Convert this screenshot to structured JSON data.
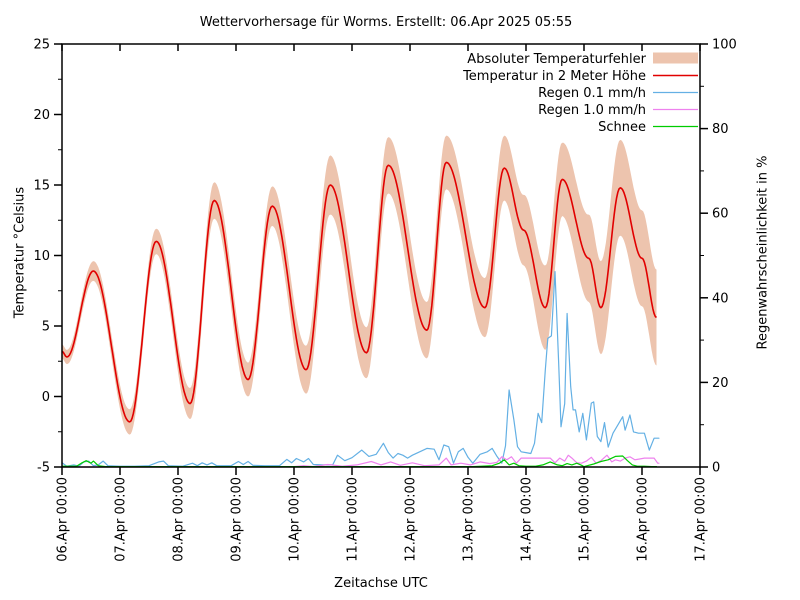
{
  "chart_data": {
    "type": "line",
    "title": "Wettervorhersage für Worms. Erstellt: 06.Apr 2025 05:55",
    "xlabel": "Zeitachse UTC",
    "ylabel_left": "Temperatur °Celsius",
    "ylabel_right": "Regenwahrscheinlichkeit in %",
    "y_left": {
      "min": -5,
      "max": 25,
      "ticks": [
        -5,
        0,
        5,
        10,
        15,
        20,
        25
      ],
      "unit": "°C"
    },
    "y_right": {
      "min": 0,
      "max": 100,
      "ticks": [
        0,
        20,
        40,
        60,
        80,
        100
      ],
      "unit": "%"
    },
    "x_axis": {
      "hours_total": 264,
      "tick_step_hours": 24,
      "tick_labels": [
        "06.Apr 00:00",
        "07.Apr 00:00",
        "08.Apr 00:00",
        "09.Apr 00:00",
        "10.Apr 00:00",
        "11.Apr 00:00",
        "12.Apr 00:00",
        "13.Apr 00:00",
        "14.Apr 00:00",
        "15.Apr 00:00",
        "16.Apr 00:00",
        "17.Apr 00:00"
      ]
    },
    "legend": [
      {
        "label": "Absoluter Temperaturfehler",
        "swatch": "band",
        "color": "#edc4ae"
      },
      {
        "label": "Temperatur in 2 Meter Höhe",
        "swatch": "line",
        "color": "#e10000"
      },
      {
        "label": "Regen 0.1 mm/h",
        "swatch": "line",
        "color": "#64b0e4"
      },
      {
        "label": "Regen 1.0 mm/h",
        "swatch": "line",
        "color": "#ee82ee"
      },
      {
        "label": "Schnee",
        "swatch": "line",
        "color": "#00cc00"
      }
    ],
    "colors": {
      "band": "#edc4ae",
      "temperature": "#e10000",
      "rain01": "#64b0e4",
      "rain10": "#ee82ee",
      "snow": "#00cc00",
      "axis": "#000000",
      "background": "#ffffff"
    },
    "temperature_c": {
      "axis": "left",
      "note": "keypoints [hours since 06.Apr 00:00 UTC, temp °C, abs error ±°C]; smooth daily wave",
      "keypoints": [
        [
          0,
          3.2,
          0.5
        ],
        [
          2,
          2.8,
          0.5
        ],
        [
          13,
          8.9,
          0.7
        ],
        [
          28,
          -1.8,
          0.9
        ],
        [
          39,
          11.0,
          0.9
        ],
        [
          53,
          -0.5,
          1.1
        ],
        [
          63,
          13.9,
          1.3
        ],
        [
          77,
          1.2,
          1.2
        ],
        [
          87,
          13.5,
          1.4
        ],
        [
          101,
          1.9,
          1.7
        ],
        [
          111,
          15.0,
          2.1
        ],
        [
          126,
          3.1,
          1.8
        ],
        [
          135,
          16.4,
          2.0
        ],
        [
          151,
          4.7,
          2.0
        ],
        [
          159,
          16.6,
          1.9
        ],
        [
          175,
          6.3,
          2.1
        ],
        [
          183,
          16.2,
          2.3
        ],
        [
          191,
          11.8,
          2.5
        ],
        [
          200,
          6.3,
          3.0
        ],
        [
          207,
          15.4,
          2.6
        ],
        [
          218,
          9.8,
          3.1
        ],
        [
          223,
          6.3,
          3.3
        ],
        [
          231,
          14.8,
          3.4
        ],
        [
          240,
          9.8,
          3.4
        ],
        [
          246,
          5.6,
          3.4
        ]
      ]
    },
    "rain01_pct": {
      "axis": "right",
      "points": [
        [
          0,
          1.0
        ],
        [
          2,
          0.2
        ],
        [
          5,
          0.5
        ],
        [
          7,
          0.2
        ],
        [
          9,
          1.2
        ],
        [
          11,
          1.4
        ],
        [
          13,
          0.3
        ],
        [
          15,
          0.5
        ],
        [
          17,
          1.4
        ],
        [
          19,
          0.3
        ],
        [
          24,
          0.2
        ],
        [
          30,
          0.2
        ],
        [
          36,
          0.3
        ],
        [
          40,
          1.2
        ],
        [
          42,
          1.4
        ],
        [
          44,
          0.3
        ],
        [
          50,
          0.2
        ],
        [
          54,
          0.9
        ],
        [
          56,
          0.3
        ],
        [
          58,
          1.0
        ],
        [
          60,
          0.5
        ],
        [
          62,
          1.0
        ],
        [
          64,
          0.3
        ],
        [
          70,
          0.3
        ],
        [
          73,
          1.3
        ],
        [
          75,
          0.6
        ],
        [
          77,
          1.3
        ],
        [
          79,
          0.4
        ],
        [
          84,
          0.3
        ],
        [
          90,
          0.3
        ],
        [
          93,
          1.8
        ],
        [
          95,
          1.0
        ],
        [
          97,
          2.0
        ],
        [
          100,
          1.2
        ],
        [
          102,
          2.0
        ],
        [
          104,
          0.6
        ],
        [
          108,
          0.5
        ],
        [
          112,
          0.5
        ],
        [
          114,
          2.8
        ],
        [
          117,
          1.5
        ],
        [
          120,
          2.2
        ],
        [
          124,
          4.0
        ],
        [
          127,
          2.5
        ],
        [
          130,
          3.0
        ],
        [
          133,
          5.6
        ],
        [
          135,
          3.4
        ],
        [
          137,
          2.1
        ],
        [
          139,
          3.2
        ],
        [
          141,
          2.8
        ],
        [
          143,
          2.1
        ],
        [
          145,
          2.8
        ],
        [
          148,
          3.6
        ],
        [
          151,
          4.4
        ],
        [
          154,
          4.2
        ],
        [
          156,
          1.7
        ],
        [
          158,
          5.2
        ],
        [
          160,
          4.8
        ],
        [
          162,
          0.9
        ],
        [
          164,
          3.6
        ],
        [
          166,
          4.4
        ],
        [
          168,
          2.3
        ],
        [
          170,
          0.9
        ],
        [
          173,
          3.0
        ],
        [
          176,
          3.6
        ],
        [
          178,
          4.4
        ],
        [
          180,
          2.5
        ],
        [
          182,
          0.9
        ],
        [
          183.5,
          5.0
        ],
        [
          185,
          18.2
        ],
        [
          187,
          11.1
        ],
        [
          188.5,
          4.8
        ],
        [
          190,
          3.6
        ],
        [
          192,
          3.4
        ],
        [
          194,
          3.2
        ],
        [
          195.5,
          5.6
        ],
        [
          197,
          12.7
        ],
        [
          198.5,
          10.5
        ],
        [
          200,
          22.9
        ],
        [
          201,
          30.4
        ],
        [
          202.5,
          31.0
        ],
        [
          204,
          46.2
        ],
        [
          205.5,
          25.0
        ],
        [
          206.5,
          9.5
        ],
        [
          208,
          15.0
        ],
        [
          209,
          36.3
        ],
        [
          210.5,
          19.0
        ],
        [
          211.5,
          13.5
        ],
        [
          212.5,
          13.5
        ],
        [
          214,
          8.3
        ],
        [
          215.5,
          12.7
        ],
        [
          217,
          6.4
        ],
        [
          219,
          15.1
        ],
        [
          220,
          15.4
        ],
        [
          221.5,
          7.2
        ],
        [
          223,
          6.0
        ],
        [
          224.5,
          10.5
        ],
        [
          226,
          4.7
        ],
        [
          228,
          8.0
        ],
        [
          230,
          9.9
        ],
        [
          232,
          11.9
        ],
        [
          233,
          8.7
        ],
        [
          235,
          12.3
        ],
        [
          236.5,
          8.3
        ],
        [
          238.5,
          8.0
        ],
        [
          241,
          8.0
        ],
        [
          243,
          4.0
        ],
        [
          245,
          6.8
        ],
        [
          247,
          6.8
        ]
      ]
    },
    "rain10_pct": {
      "axis": "right",
      "points": [
        [
          0,
          0
        ],
        [
          90,
          0
        ],
        [
          96,
          0.1
        ],
        [
          100,
          0.3
        ],
        [
          104,
          0.1
        ],
        [
          110,
          0.6
        ],
        [
          116,
          0.2
        ],
        [
          122,
          0.5
        ],
        [
          128,
          1.3
        ],
        [
          132,
          0.5
        ],
        [
          136,
          1.2
        ],
        [
          140,
          0.4
        ],
        [
          145,
          1.0
        ],
        [
          150,
          0.3
        ],
        [
          156,
          0.5
        ],
        [
          159,
          2.1
        ],
        [
          161,
          0.5
        ],
        [
          165,
          0.9
        ],
        [
          169,
          0.5
        ],
        [
          173,
          1.2
        ],
        [
          177,
          0.8
        ],
        [
          180,
          1.1
        ],
        [
          182,
          2.4
        ],
        [
          184,
          1.7
        ],
        [
          186,
          2.4
        ],
        [
          188,
          0.9
        ],
        [
          190,
          2.1
        ],
        [
          194,
          2.1
        ],
        [
          198,
          2.1
        ],
        [
          202,
          2.1
        ],
        [
          204,
          1.0
        ],
        [
          206,
          2.1
        ],
        [
          208,
          1.4
        ],
        [
          209.5,
          2.8
        ],
        [
          211,
          2.1
        ],
        [
          213,
          1.0
        ],
        [
          215,
          0.9
        ],
        [
          217,
          1.4
        ],
        [
          219,
          2.3
        ],
        [
          221,
          0.9
        ],
        [
          223,
          1.5
        ],
        [
          225.5,
          2.8
        ],
        [
          227.5,
          1.2
        ],
        [
          229,
          1.7
        ],
        [
          231,
          1.4
        ],
        [
          233,
          2.1
        ],
        [
          235,
          2.4
        ],
        [
          237,
          1.7
        ],
        [
          239,
          1.9
        ],
        [
          241,
          2.1
        ],
        [
          243,
          2.1
        ],
        [
          245,
          2.1
        ],
        [
          246.5,
          0.9
        ],
        [
          247,
          0.9
        ]
      ]
    },
    "snow_pct": {
      "axis": "right",
      "points": [
        [
          0,
          0.2
        ],
        [
          6,
          0.2
        ],
        [
          8,
          0.9
        ],
        [
          10,
          1.5
        ],
        [
          12,
          0.9
        ],
        [
          13,
          1.4
        ],
        [
          15,
          0.3
        ],
        [
          18,
          0.1
        ],
        [
          24,
          0.1
        ],
        [
          96,
          0.1
        ],
        [
          170,
          0.1
        ],
        [
          178,
          0.3
        ],
        [
          181,
          0.9
        ],
        [
          183,
          1.7
        ],
        [
          185,
          0.5
        ],
        [
          187,
          0.9
        ],
        [
          189,
          0.3
        ],
        [
          192,
          0.2
        ],
        [
          196,
          0.2
        ],
        [
          199,
          0.5
        ],
        [
          202,
          1.2
        ],
        [
          205,
          0.5
        ],
        [
          207,
          0.3
        ],
        [
          209,
          0.8
        ],
        [
          211,
          0.5
        ],
        [
          213,
          0.9
        ],
        [
          215,
          0.4
        ],
        [
          216,
          0.1
        ],
        [
          220,
          0.7
        ],
        [
          223,
          1.3
        ],
        [
          226,
          1.7
        ],
        [
          229,
          2.5
        ],
        [
          232,
          2.6
        ],
        [
          234,
          1.5
        ],
        [
          236,
          0.5
        ],
        [
          238,
          0.2
        ],
        [
          241,
          0.2
        ],
        [
          244,
          0.1
        ],
        [
          246,
          0.1
        ]
      ]
    }
  }
}
